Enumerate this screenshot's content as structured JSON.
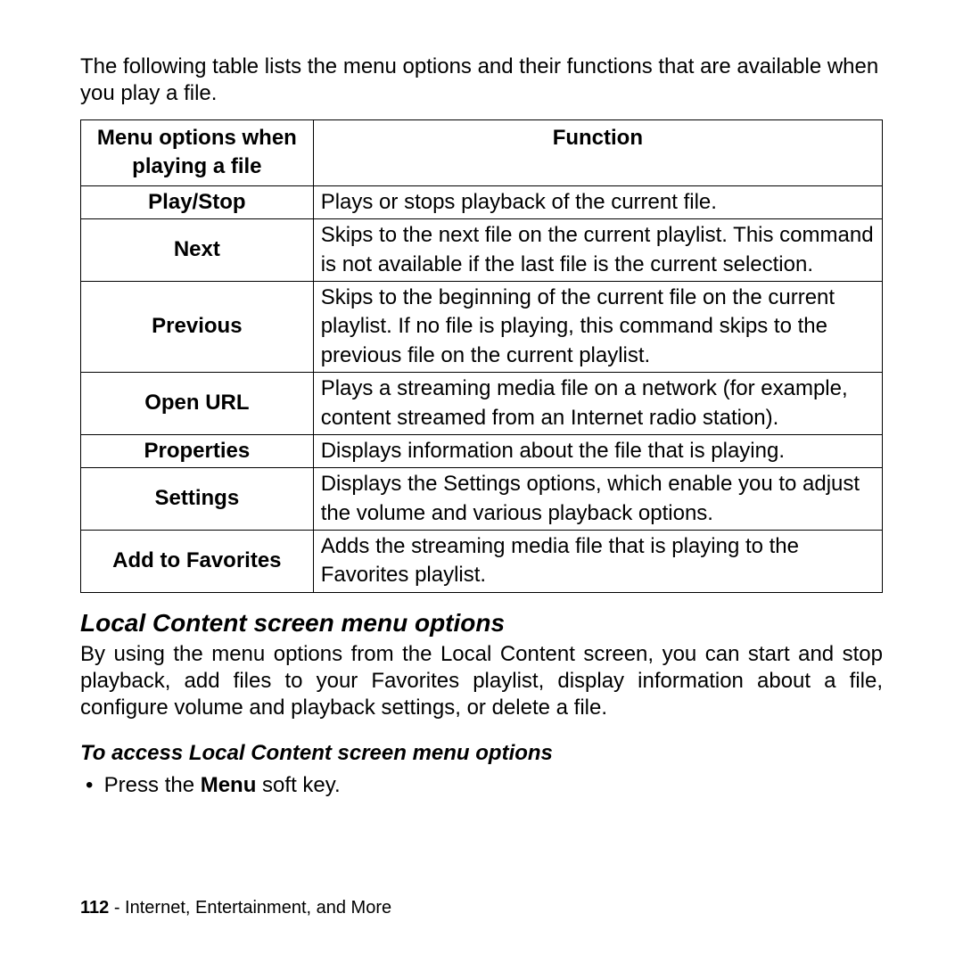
{
  "intro": "The following table lists the menu options and their functions that are available when you play a file.",
  "table": {
    "headers": {
      "option": "Menu options when playing a file",
      "function": "Function"
    },
    "rows": [
      {
        "option": "Play/Stop",
        "function": "Plays or stops playback of the current file."
      },
      {
        "option": "Next",
        "function": "Skips to the next file on the current playlist. This command is not available if the last file is the current selection."
      },
      {
        "option": "Previous",
        "function": "Skips to the beginning of the current file on the current playlist. If no file is playing, this command skips to the previous file on the current playlist."
      },
      {
        "option": "Open URL",
        "function": "Plays a streaming media file on a network (for example, content streamed from an Internet radio station)."
      },
      {
        "option": "Properties",
        "function": "Displays information about the file that is playing."
      },
      {
        "option": "Settings",
        "function": "Displays the Settings options, which enable you to adjust the volume and various playback options."
      },
      {
        "option": "Add to Favorites",
        "function": "Adds the streaming media file that is playing to the Favorites playlist."
      }
    ]
  },
  "section": {
    "heading": "Local Content screen menu options",
    "body": "By using the menu options from the Local Content screen, you can start and stop playback, add files to your Favorites playlist, display information about a file, configure volume and playback settings, or delete a file."
  },
  "subheading": "To access Local Content screen menu options",
  "bullet": {
    "pre": "Press the ",
    "bold": "Menu",
    "post": " soft key."
  },
  "footer": {
    "page": "112",
    "sep": " - ",
    "title": "Internet, Entertainment, and More"
  }
}
